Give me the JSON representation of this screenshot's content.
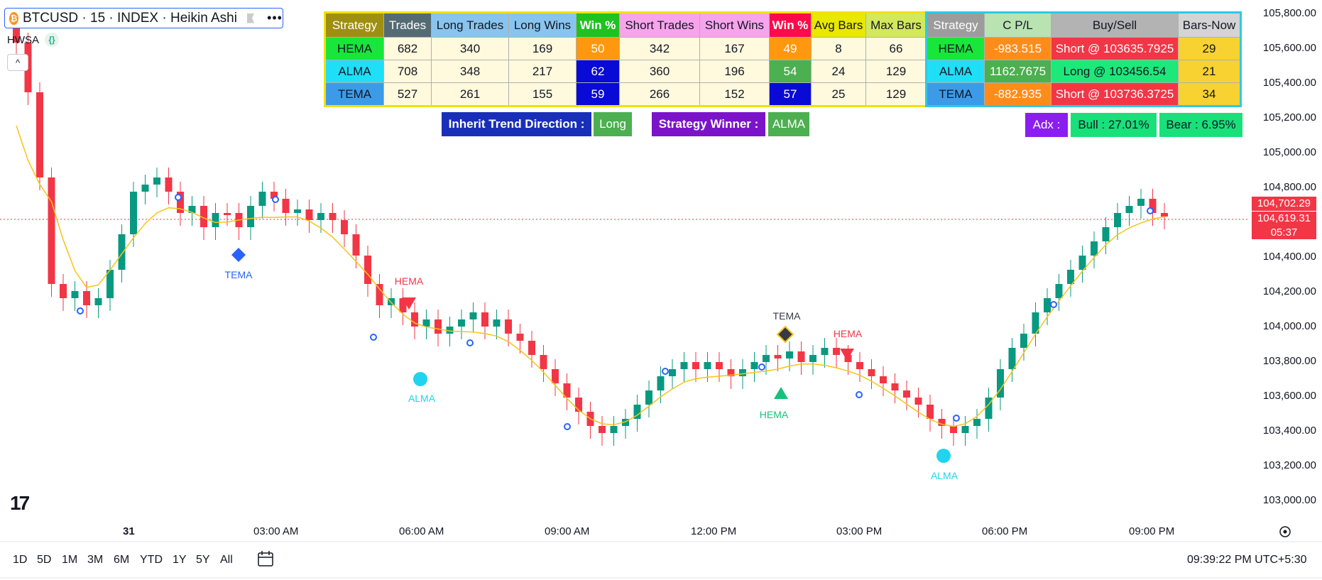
{
  "header": {
    "symbol_title": "BTCUSD · 15 · INDEX · Heikin Ashi",
    "coin_glyph": "₿",
    "more_glyph": "•••",
    "indicator_label": "HWSA",
    "indicator_badge": "{}",
    "collapse_glyph": "^"
  },
  "stats_table": {
    "headers": [
      "Strategy",
      "Trades",
      "Long Trades",
      "Long Wins",
      "Win %",
      "Short Trades",
      "Short Wins",
      "Win %",
      "Avg Bars",
      "Max Bars"
    ],
    "rows": [
      [
        "HEMA",
        "682",
        "340",
        "169",
        "50",
        "342",
        "167",
        "49",
        "8",
        "66"
      ],
      [
        "ALMA",
        "708",
        "348",
        "217",
        "62",
        "360",
        "196",
        "54",
        "24",
        "129"
      ],
      [
        "TEMA",
        "527",
        "261",
        "155",
        "59",
        "266",
        "152",
        "57",
        "25",
        "129"
      ]
    ]
  },
  "pnl_table": {
    "headers": [
      "Strategy",
      "C P/L",
      "Buy/Sell",
      "Bars-Now"
    ],
    "rows": [
      [
        "HEMA",
        "-983.515",
        "Short @ 103635.7925",
        "29"
      ],
      [
        "ALMA",
        "1162.7675",
        "Long @ 103456.54",
        "21"
      ],
      [
        "TEMA",
        "-882.935",
        "Short @ 103736.3725",
        "34"
      ]
    ]
  },
  "info_pills": {
    "trend_label": "Inherit Trend Direction :",
    "trend_value": "Long",
    "winner_label": "Strategy Winner :",
    "winner_value": "ALMA",
    "adx_label": "Adx :",
    "bull_value": "Bull : 27.01%",
    "bear_value": "Bear : 6.95%"
  },
  "markers": [
    {
      "label": "TEMA",
      "shape": "diamond",
      "color": "#2962ff"
    },
    {
      "label": "HEMA",
      "shape": "triangle-down",
      "color": "#f23645"
    },
    {
      "label": "ALMA",
      "shape": "circle",
      "color": "#22d3ee"
    },
    {
      "label": "TEMA",
      "shape": "diamond",
      "color": "#363a45"
    },
    {
      "label": "HEMA",
      "shape": "triangle-up",
      "color": "#12c47a"
    },
    {
      "label": "HEMA",
      "shape": "triangle-down",
      "color": "#f23645"
    },
    {
      "label": "ALMA",
      "shape": "circle",
      "color": "#22d3ee"
    }
  ],
  "price_axis": [
    "105,800.00",
    "105,600.00",
    "105,400.00",
    "105,200.00",
    "105,000.00",
    "104,800.00",
    "104,400.00",
    "104,200.00",
    "104,000.00",
    "103,800.00",
    "103,600.00",
    "103,400.00",
    "103,200.00",
    "103,000.00"
  ],
  "price_tags": {
    "upper": "104,702.29",
    "last": "104,619.31",
    "countdown": "05:37"
  },
  "time_axis": [
    "31",
    "03:00 AM",
    "06:00 AM",
    "09:00 AM",
    "12:00 PM",
    "03:00 PM",
    "06:00 PM",
    "09:00 PM"
  ],
  "footer": {
    "ranges": [
      "1D",
      "5D",
      "1M",
      "3M",
      "6M",
      "YTD",
      "1Y",
      "5Y",
      "All"
    ],
    "clock": "09:39:22 PM UTC+5:30",
    "logo_text": "17"
  },
  "colors": {
    "bull": "#089981",
    "bear": "#f23645",
    "ma_line": "#f5c518",
    "last_price_line": "#f23645"
  }
}
